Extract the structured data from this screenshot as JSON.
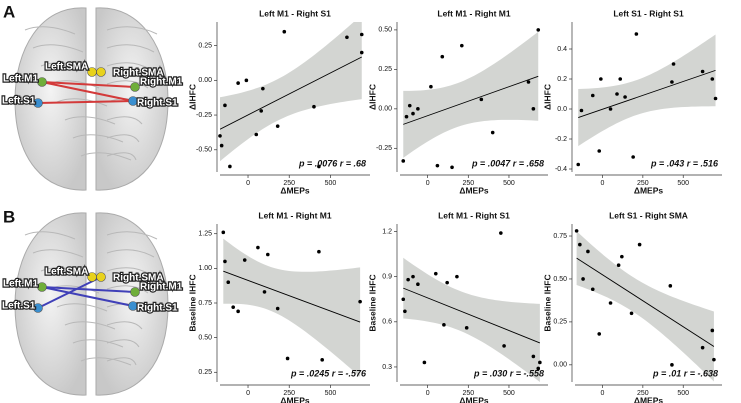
{
  "panels": [
    {
      "label": "A",
      "nodes": [
        "Left.SMA",
        "Right.SMA",
        "Left.M1",
        "Right.M1",
        "Left.S1",
        "Right.S1"
      ]
    },
    {
      "label": "B",
      "nodes": [
        "Left.SMA",
        "Right.SMA",
        "Left.M1",
        "Right.M1",
        "Left.S1",
        "Right.S1"
      ]
    }
  ],
  "chart_data": [
    {
      "type": "scatter",
      "title": "Left M1 - Right S1",
      "x_label": "ΔMEPs",
      "y_label": "ΔIHFC",
      "annotation": "p = .0076 r = .68",
      "color": "#000000",
      "band_color": "#d3d5d2",
      "x": [
        -170,
        -160,
        -140,
        -110,
        -60,
        -10,
        50,
        80,
        90,
        180,
        220,
        430,
        400,
        600,
        690,
        690
      ],
      "values": [
        -0.4,
        -0.47,
        -0.18,
        -0.62,
        -0.02,
        0.0,
        -0.39,
        -0.22,
        -0.06,
        -0.33,
        0.35,
        -0.62,
        -0.19,
        0.31,
        0.33,
        0.2
      ],
      "xlim": [
        -170,
        740
      ],
      "xticks": [
        0,
        250,
        500
      ],
      "ylim": [
        -0.66,
        0.42
      ],
      "yticks": [
        {
          "value": -0.5,
          "label": "-0.50"
        },
        -0.25,
        {
          "value": 0,
          "label": "0.00"
        },
        0.25
      ]
    },
    {
      "type": "scatter",
      "title": "Left M1 - Right M1",
      "x_label": "ΔMEPs",
      "y_label": "ΔIHFC",
      "annotation": "p = .0047 r = .658",
      "color": "#000000",
      "band_color": "#d3d5d2",
      "x": [
        -150,
        -130,
        -110,
        -90,
        -60,
        20,
        60,
        90,
        150,
        210,
        330,
        400,
        620,
        650,
        680
      ],
      "values": [
        -0.33,
        -0.05,
        0.02,
        -0.03,
        0.0,
        0.14,
        -0.36,
        0.33,
        -0.37,
        0.4,
        0.06,
        -0.15,
        0.17,
        0.0,
        0.5
      ],
      "xlim": [
        -170,
        740
      ],
      "xticks": [
        0,
        250,
        500
      ],
      "ylim": [
        -0.4,
        0.55
      ],
      "yticks": [
        -0.25,
        {
          "value": 0,
          "label": "0.00"
        },
        0.25,
        {
          "value": 0.5,
          "label": "0.50"
        }
      ]
    },
    {
      "type": "scatter",
      "title": "Left S1 - Right S1",
      "x_label": "ΔMEPs",
      "y_label": "ΔIHFC",
      "annotation": "p = .043 r = .516",
      "color": "#000000",
      "band_color": "#d3d5d2",
      "x": [
        -150,
        -130,
        -60,
        -20,
        -10,
        50,
        90,
        110,
        140,
        190,
        210,
        440,
        430,
        620,
        680,
        700
      ],
      "values": [
        -0.37,
        -0.01,
        0.09,
        -0.28,
        0.2,
        0.0,
        0.1,
        0.2,
        0.08,
        -0.32,
        0.5,
        0.3,
        0.18,
        0.25,
        0.2,
        0.07
      ],
      "xlim": [
        -170,
        740
      ],
      "xticks": [
        0,
        250,
        500
      ],
      "ylim": [
        -0.42,
        0.58
      ],
      "yticks": [
        -0.4,
        -0.2,
        {
          "value": 0,
          "label": "0.0"
        },
        0.2,
        0.4
      ]
    },
    {
      "type": "scatter",
      "title": "Left M1 - Right M1",
      "x_label": "ΔMEPs",
      "y_label": "Baseline IHFC",
      "annotation": "p = .0245 r = -.576",
      "color": "#000000",
      "band_color": "#d3d5d2",
      "x": [
        -150,
        -140,
        -120,
        -90,
        -60,
        -20,
        60,
        100,
        120,
        180,
        240,
        430,
        450,
        680
      ],
      "values": [
        1.26,
        1.05,
        0.9,
        0.72,
        0.69,
        1.06,
        1.15,
        0.83,
        1.1,
        0.71,
        0.35,
        1.12,
        0.34,
        0.76
      ],
      "xlim": [
        -170,
        740
      ],
      "xticks": [
        0,
        250,
        500
      ],
      "ylim": [
        0.18,
        1.32
      ],
      "yticks": [
        0.25,
        {
          "value": 0.5,
          "label": "0.50"
        },
        0.75,
        {
          "value": 1,
          "label": "1.00"
        },
        1.25
      ]
    },
    {
      "type": "scatter",
      "title": "Left M1 - Right S1",
      "x_label": "ΔMEPs",
      "y_label": "Baseline IHFC",
      "annotation": "p = .030 r = -.558",
      "color": "#000000",
      "band_color": "#d3d5d2",
      "x": [
        -150,
        -140,
        -120,
        -90,
        -60,
        -20,
        50,
        100,
        120,
        180,
        240,
        450,
        470,
        650,
        680,
        690
      ],
      "values": [
        0.75,
        0.67,
        0.88,
        0.9,
        0.85,
        0.33,
        0.92,
        0.58,
        0.86,
        0.9,
        0.56,
        1.19,
        0.44,
        0.37,
        0.29,
        0.33
      ],
      "xlim": [
        -170,
        740
      ],
      "xticks": [
        0,
        250,
        500
      ],
      "ylim": [
        0.2,
        1.25
      ],
      "yticks": [
        0.3,
        0.6,
        0.9,
        1.2
      ]
    },
    {
      "type": "scatter",
      "title": "Left S1 - Right SMA",
      "x_label": "ΔMEPs",
      "y_label": "Baseline IHFC",
      "annotation": "p = .01 r = -.638",
      "color": "#000000",
      "band_color": "#d3d5d2",
      "x": [
        -160,
        -140,
        -120,
        -90,
        -60,
        -20,
        50,
        100,
        120,
        180,
        230,
        420,
        430,
        620,
        680,
        690
      ],
      "values": [
        0.78,
        0.7,
        0.5,
        0.66,
        0.44,
        0.18,
        0.36,
        0.58,
        0.63,
        0.3,
        0.7,
        0.46,
        0.0,
        0.1,
        0.2,
        0.03
      ],
      "xlim": [
        -170,
        740
      ],
      "xticks": [
        0,
        250,
        500
      ],
      "ylim": [
        -0.1,
        0.82
      ],
      "yticks": [
        {
          "value": 0,
          "label": "0.00"
        },
        0.25,
        {
          "value": 0.5,
          "label": "0.50"
        },
        0.75
      ]
    }
  ]
}
